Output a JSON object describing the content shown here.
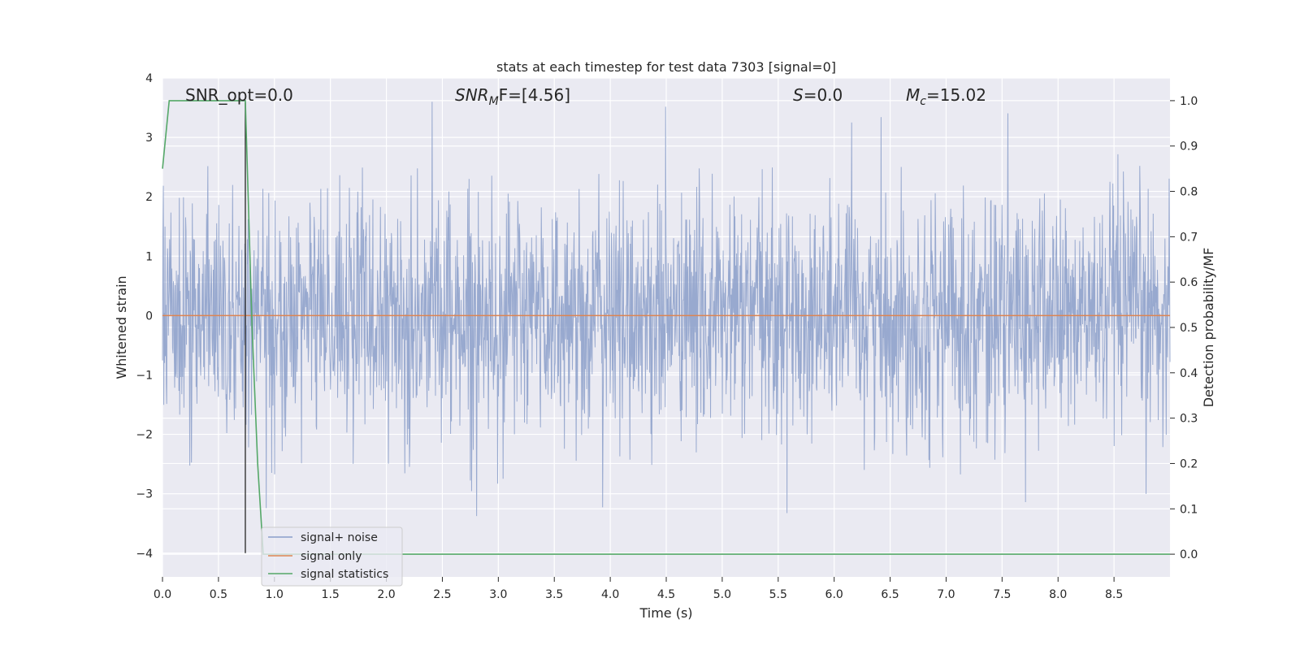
{
  "chart_data": {
    "type": "line",
    "title": "stats at each timestep for test data 7303 [signal=0]",
    "xlabel": "Time (s)",
    "ylabel": "Whitened strain",
    "y2label": "Detection probability/MF",
    "xlim": [
      0,
      9.0
    ],
    "ylim": [
      -4.4,
      4.0
    ],
    "y2lim": [
      -0.05,
      1.05
    ],
    "xticks": [
      "0.0",
      "0.5",
      "1.0",
      "1.5",
      "2.0",
      "2.5",
      "3.0",
      "3.5",
      "4.0",
      "4.5",
      "5.0",
      "5.5",
      "6.0",
      "6.5",
      "7.0",
      "7.5",
      "8.0",
      "8.5"
    ],
    "yticks": [
      "4",
      "3",
      "2",
      "1",
      "0",
      "−1",
      "−2",
      "−3",
      "−4"
    ],
    "y2ticks": [
      "1.0",
      "0.9",
      "0.8",
      "0.7",
      "0.6",
      "0.5",
      "0.4",
      "0.3",
      "0.2",
      "0.1",
      "0.0"
    ],
    "grid": true,
    "legend_position": "lower-left",
    "annotations": [
      {
        "label": "SNR_opt=0.0"
      },
      {
        "label": "SNR",
        "sub": "M",
        "suffix": "F=[4.56]",
        "italic": true
      },
      {
        "label": "S",
        "suffix": "=0.0",
        "italic": true
      },
      {
        "label": "M",
        "sub": "c",
        "suffix": "=15.02",
        "italic": true
      }
    ],
    "series": [
      {
        "name": "signal+ noise",
        "color": "#8a9ec9",
        "axis": "left",
        "description_range": [
          -3.8,
          3.6
        ]
      },
      {
        "name": "signal only",
        "color": "#dd8452",
        "axis": "left",
        "x": [
          0,
          9.0
        ],
        "y": [
          0,
          0
        ]
      },
      {
        "name": "signal statistics",
        "color": "#55a868",
        "axis": "right",
        "x": [
          0.0,
          0.06,
          0.1,
          0.3,
          0.6,
          0.74,
          0.8,
          0.85,
          0.9,
          2.0,
          9.0
        ],
        "y": [
          0.85,
          1.0,
          1.0,
          1.0,
          1.0,
          1.0,
          0.5,
          0.2,
          0.0,
          0.0,
          0.0
        ]
      }
    ],
    "vline": {
      "x": 0.74,
      "color": "#333333"
    }
  }
}
